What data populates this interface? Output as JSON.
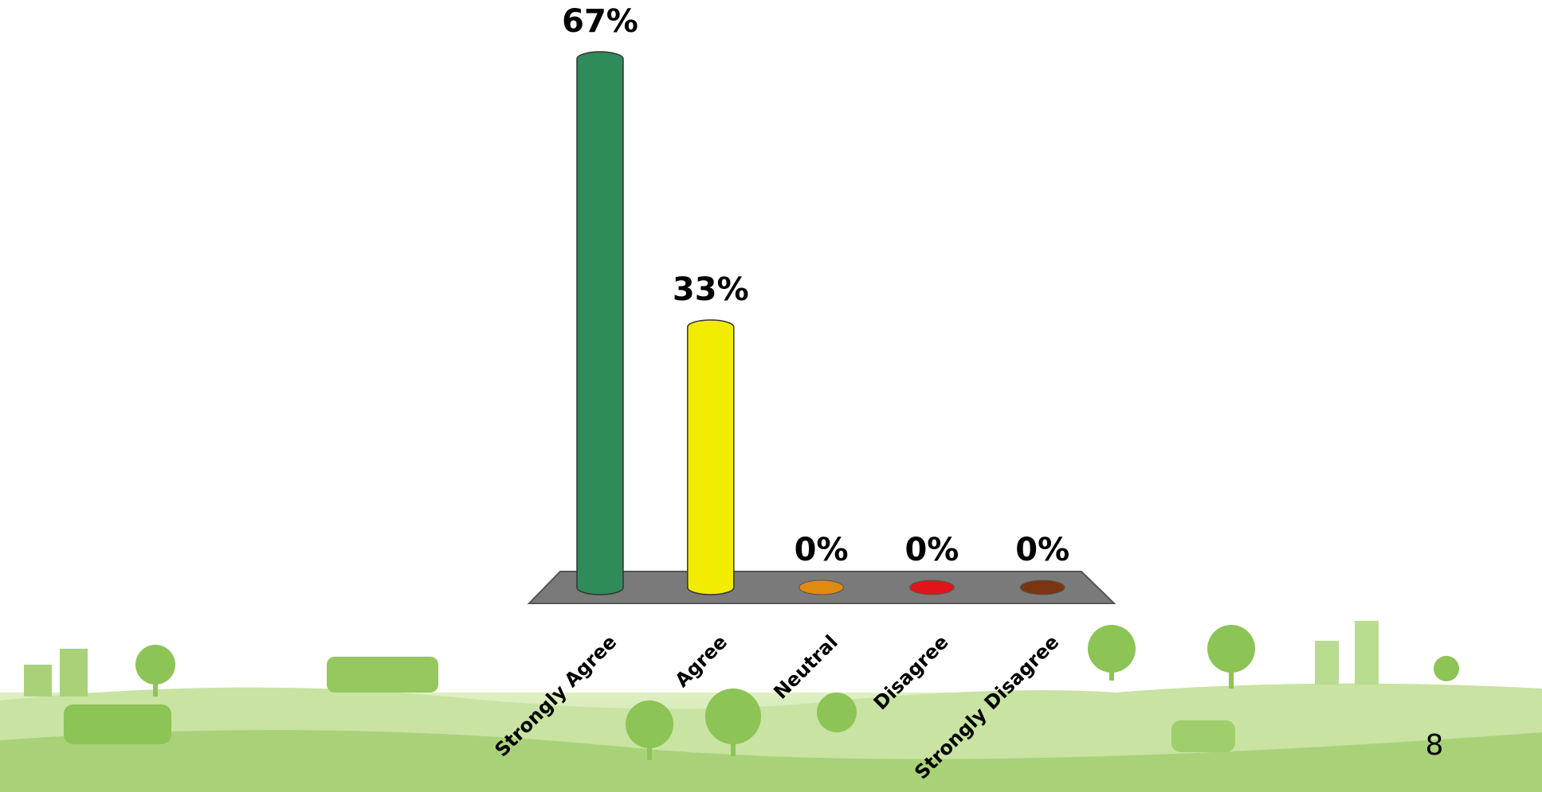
{
  "chart_data": {
    "type": "bar",
    "categories": [
      "Strongly Agree",
      "Agree",
      "Neutral",
      "Disagree",
      "Strongly Disagree"
    ],
    "values": [
      67,
      33,
      0,
      0,
      0
    ],
    "value_labels": [
      "67%",
      "33%",
      "0%",
      "0%",
      "0%"
    ],
    "colors": [
      "#2e8b5a",
      "#f2ec00",
      "#e08a10",
      "#e0141a",
      "#7a3510"
    ]
  },
  "page_number": "8"
}
